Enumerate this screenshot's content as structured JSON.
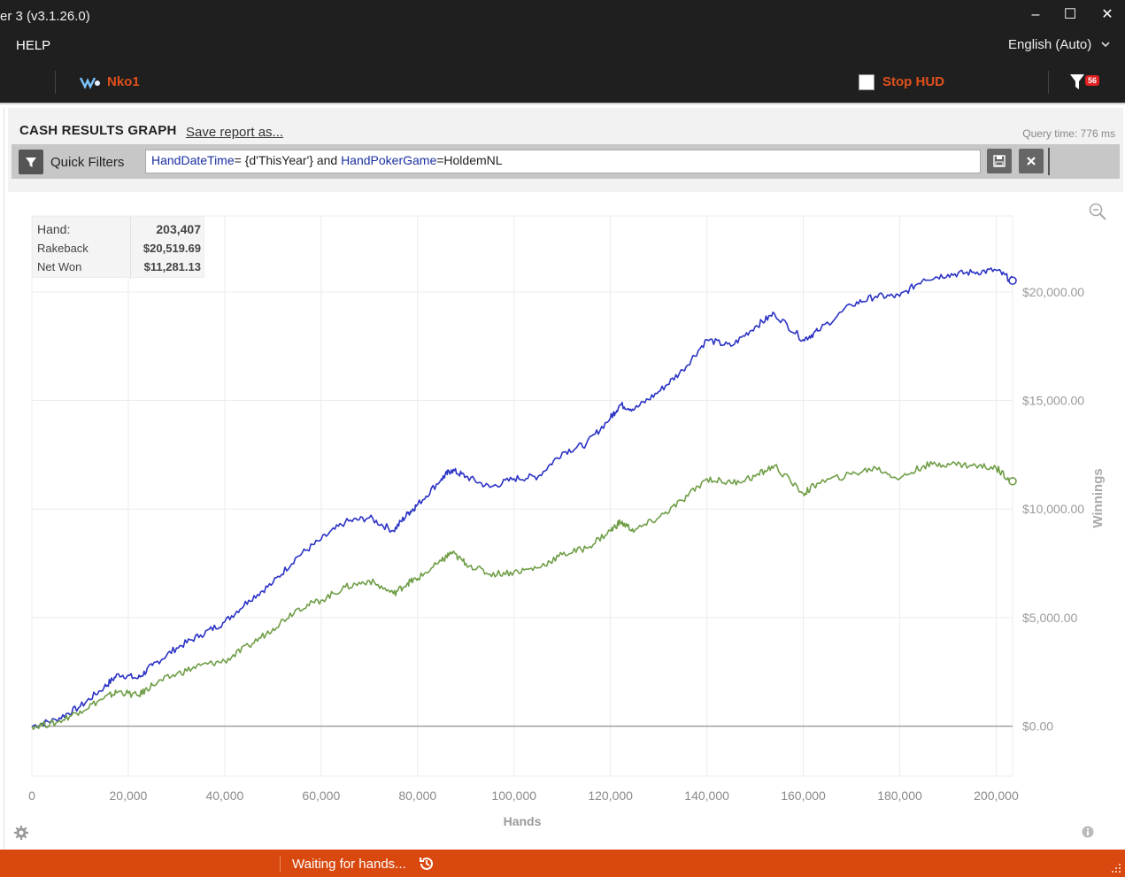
{
  "window": {
    "title": "er 3 (v3.1.26.0)",
    "minimize_label": "‒",
    "maximize_label": "☐",
    "close_label": "✕"
  },
  "menu": {
    "help_label": "HELP",
    "language_label": "English (Auto)"
  },
  "toolbar": {
    "nickname": "Nko1",
    "stop_hud_label": "Stop HUD",
    "stop_hud_checked": false,
    "filter_badge_count": "56"
  },
  "report": {
    "title": "CASH RESULTS GRAPH",
    "save_label": "Save report as...",
    "query_time": "Query time: 776 ms"
  },
  "quick_filters": {
    "label": "Quick Filters",
    "expression": [
      {
        "text": "HandDateTime",
        "kind": "key"
      },
      {
        "text": "= {d'ThisYear'} and ",
        "kind": "value"
      },
      {
        "text": "HandPokerGame",
        "kind": "key"
      },
      {
        "text": "=HoldemNL",
        "kind": "value"
      }
    ]
  },
  "tooltip": {
    "rows": [
      {
        "label": "Hand:",
        "value": "203,407"
      },
      {
        "label": "Rakeback",
        "value": "$20,519.69"
      },
      {
        "label": "Net Won",
        "value": "$11,281.13"
      }
    ]
  },
  "status": {
    "message": "Waiting for hands..."
  },
  "colors": {
    "accent_orange": "#d9480f",
    "rakeback_line": "#2b33c4",
    "net_won_line": "#6f9e47",
    "zero_line": "#9a9a9a"
  },
  "chart_data": {
    "type": "line",
    "xlabel": "Hands",
    "ylabel": "Winnings",
    "xlim": [
      0,
      203407
    ],
    "ylim": [
      -2300,
      23500
    ],
    "x_ticks": [
      0,
      20000,
      40000,
      60000,
      80000,
      100000,
      120000,
      140000,
      160000,
      180000,
      200000
    ],
    "x_tick_labels": [
      "0",
      "20,000",
      "40,000",
      "60,000",
      "80,000",
      "100,000",
      "120,000",
      "140,000",
      "160,000",
      "180,000",
      "200,000"
    ],
    "y_ticks": [
      0,
      5000,
      10000,
      15000,
      20000
    ],
    "y_tick_labels": [
      "$0.00",
      "$5,000.00",
      "$10,000.00",
      "$15,000.00",
      "$20,000.00"
    ],
    "grid": true,
    "y_axis_side": "right",
    "series": [
      {
        "name": "Rakeback",
        "color": "#2b33c4",
        "x": [
          0,
          5000,
          10000,
          15000,
          18000,
          22000,
          25000,
          30000,
          35000,
          40000,
          45000,
          50000,
          55000,
          60000,
          65000,
          70000,
          75000,
          78000,
          80000,
          85000,
          87000,
          90000,
          95000,
          100000,
          105000,
          110000,
          115000,
          120000,
          122000,
          125000,
          130000,
          135000,
          140000,
          145000,
          150000,
          154000,
          160000,
          163000,
          170000,
          175000,
          180000,
          185000,
          190000,
          195000,
          200000,
          203407
        ],
        "y": [
          0,
          300,
          900,
          1800,
          2400,
          2200,
          2800,
          3600,
          4200,
          4800,
          5800,
          6600,
          7800,
          8600,
          9400,
          9600,
          9000,
          9800,
          10200,
          11400,
          11800,
          11500,
          11000,
          11400,
          11500,
          12600,
          13000,
          14200,
          14800,
          14600,
          15400,
          16400,
          17800,
          17500,
          18400,
          19000,
          17800,
          18200,
          19400,
          19800,
          19800,
          20600,
          20800,
          20900,
          21000,
          20519.69
        ]
      },
      {
        "name": "Net Won",
        "color": "#6f9e47",
        "x": [
          0,
          5000,
          10000,
          15000,
          18000,
          22000,
          25000,
          30000,
          35000,
          40000,
          45000,
          50000,
          55000,
          60000,
          65000,
          70000,
          75000,
          78000,
          80000,
          85000,
          87000,
          90000,
          95000,
          100000,
          105000,
          110000,
          115000,
          120000,
          122000,
          125000,
          130000,
          135000,
          140000,
          145000,
          150000,
          154000,
          160000,
          163000,
          170000,
          175000,
          180000,
          185000,
          190000,
          195000,
          200000,
          203407
        ],
        "y": [
          0,
          150,
          700,
          1300,
          1600,
          1400,
          1900,
          2400,
          2800,
          3000,
          3700,
          4500,
          5400,
          5800,
          6400,
          6700,
          6100,
          6600,
          6800,
          7600,
          8000,
          7500,
          7000,
          7100,
          7300,
          7900,
          8200,
          9000,
          9400,
          9000,
          9600,
          10400,
          11400,
          11200,
          11500,
          12000,
          10700,
          11200,
          11600,
          11900,
          11400,
          12000,
          12100,
          12000,
          11900,
          11281.13
        ]
      }
    ]
  }
}
